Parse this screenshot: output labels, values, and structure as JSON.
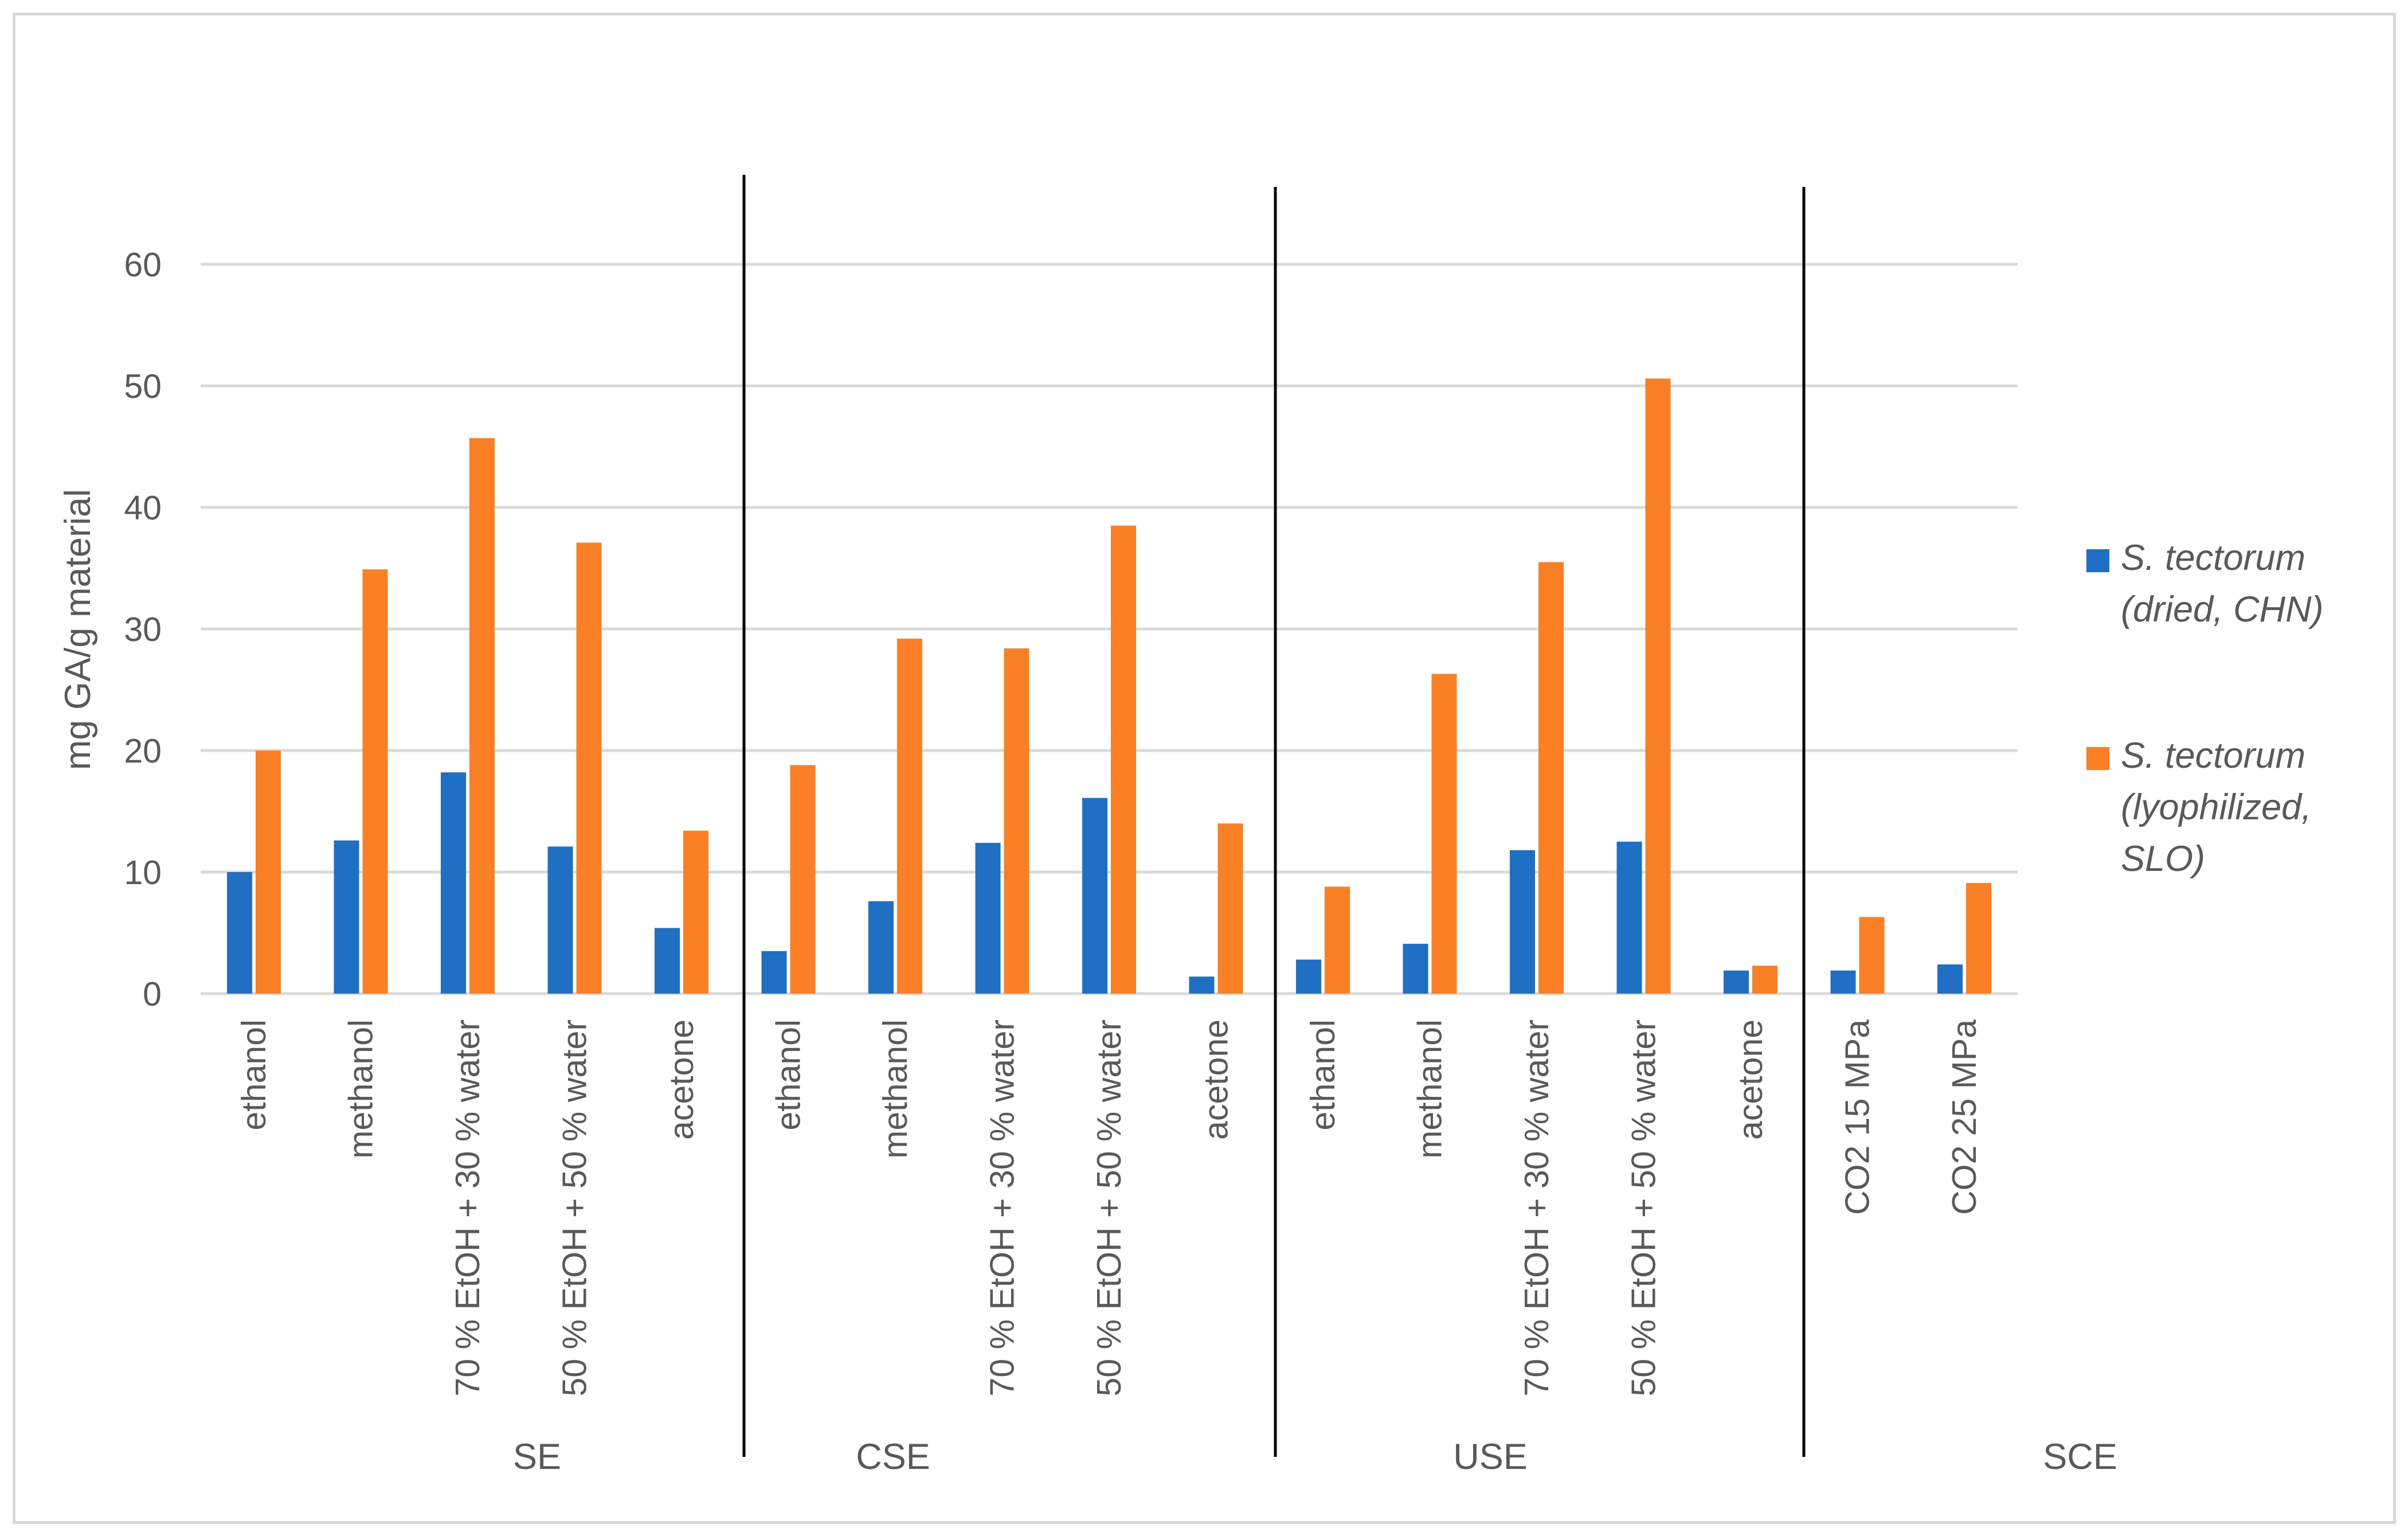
{
  "chart_data": {
    "type": "bar",
    "ylabel": "mg GA/g material",
    "ylim": [
      0,
      60
    ],
    "yticks": [
      "0",
      "10",
      "20",
      "30",
      "40",
      "50",
      "60"
    ],
    "grid": true,
    "legend_position": "right",
    "groups": [
      "SE",
      "CSE",
      "USE",
      "SCE"
    ],
    "categories": [
      "ethanol",
      "methanol",
      "70 % EtOH + 30 % water",
      "50 % EtOH + 50 % water",
      "acetone",
      "ethanol",
      "methanol",
      "70 % EtOH + 30 % water",
      "50 % EtOH + 50 % water",
      "acetone",
      "ethanol",
      "methanol",
      "70 % EtOH + 30 % water",
      "50 % EtOH + 50 % water",
      "acetone",
      "CO2 15 MPa",
      "CO2 25 MPa"
    ],
    "category_group": [
      0,
      0,
      0,
      0,
      0,
      1,
      1,
      1,
      1,
      1,
      2,
      2,
      2,
      2,
      2,
      3,
      3
    ],
    "series": [
      {
        "name_lines": [
          "S. tectorum",
          "(dried, CHN)"
        ],
        "color": "#1f6fc5",
        "values": [
          10.0,
          12.6,
          18.2,
          12.1,
          5.4,
          3.5,
          7.6,
          12.4,
          16.1,
          1.4,
          2.8,
          4.1,
          11.8,
          12.5,
          1.9,
          1.9,
          2.4
        ]
      },
      {
        "name_lines": [
          "S. tectorum",
          "(lyophilized,",
          "SLO)"
        ],
        "color": "#fb7f24",
        "values": [
          20.0,
          34.9,
          45.7,
          37.1,
          13.4,
          18.8,
          29.2,
          28.4,
          38.5,
          14.0,
          8.8,
          26.3,
          35.5,
          50.6,
          2.3,
          6.3,
          9.1
        ]
      }
    ]
  }
}
